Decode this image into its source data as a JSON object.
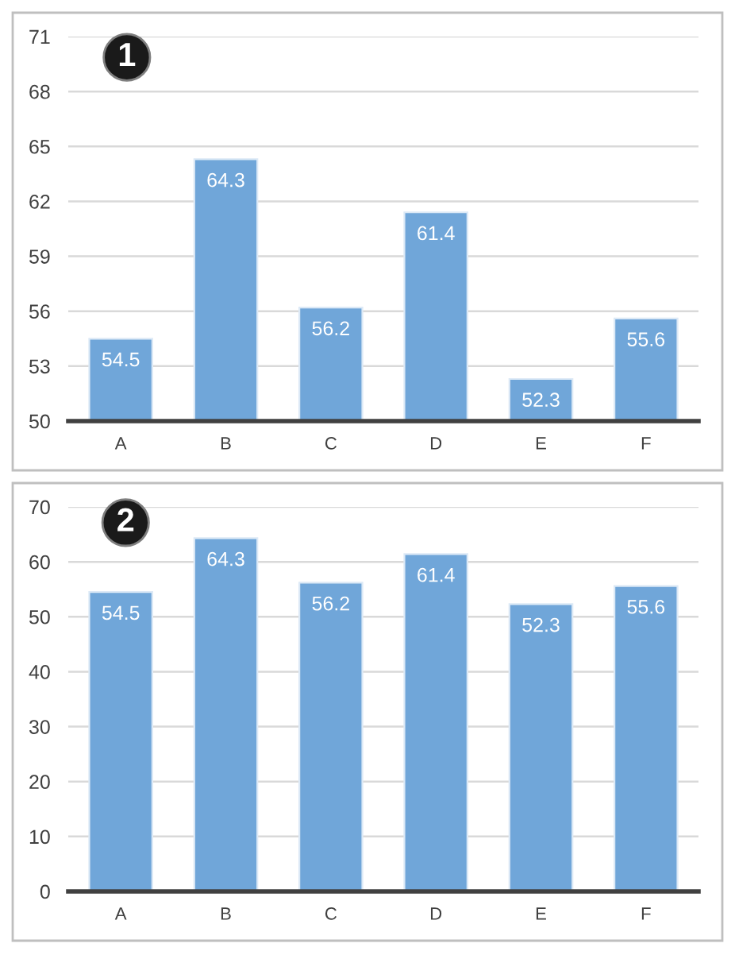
{
  "chart_data": [
    {
      "type": "bar",
      "annotations": [
        "1"
      ],
      "categories": [
        "A",
        "B",
        "C",
        "D",
        "E",
        "F"
      ],
      "values": [
        54.5,
        64.3,
        56.2,
        61.4,
        52.3,
        55.6
      ],
      "color": "#70a6d9",
      "ylim": [
        50,
        71
      ],
      "yticks": [
        50,
        53,
        56,
        59,
        62,
        65,
        68,
        71
      ],
      "grid": "y",
      "data_labels": true
    },
    {
      "type": "bar",
      "annotations": [
        "2"
      ],
      "categories": [
        "A",
        "B",
        "C",
        "D",
        "E",
        "F"
      ],
      "values": [
        54.5,
        64.3,
        56.2,
        61.4,
        52.3,
        55.6
      ],
      "color": "#70a6d9",
      "ylim": [
        0,
        70
      ],
      "yticks": [
        0,
        10,
        20,
        30,
        40,
        50,
        60,
        70
      ],
      "grid": "y",
      "data_labels": true
    }
  ]
}
